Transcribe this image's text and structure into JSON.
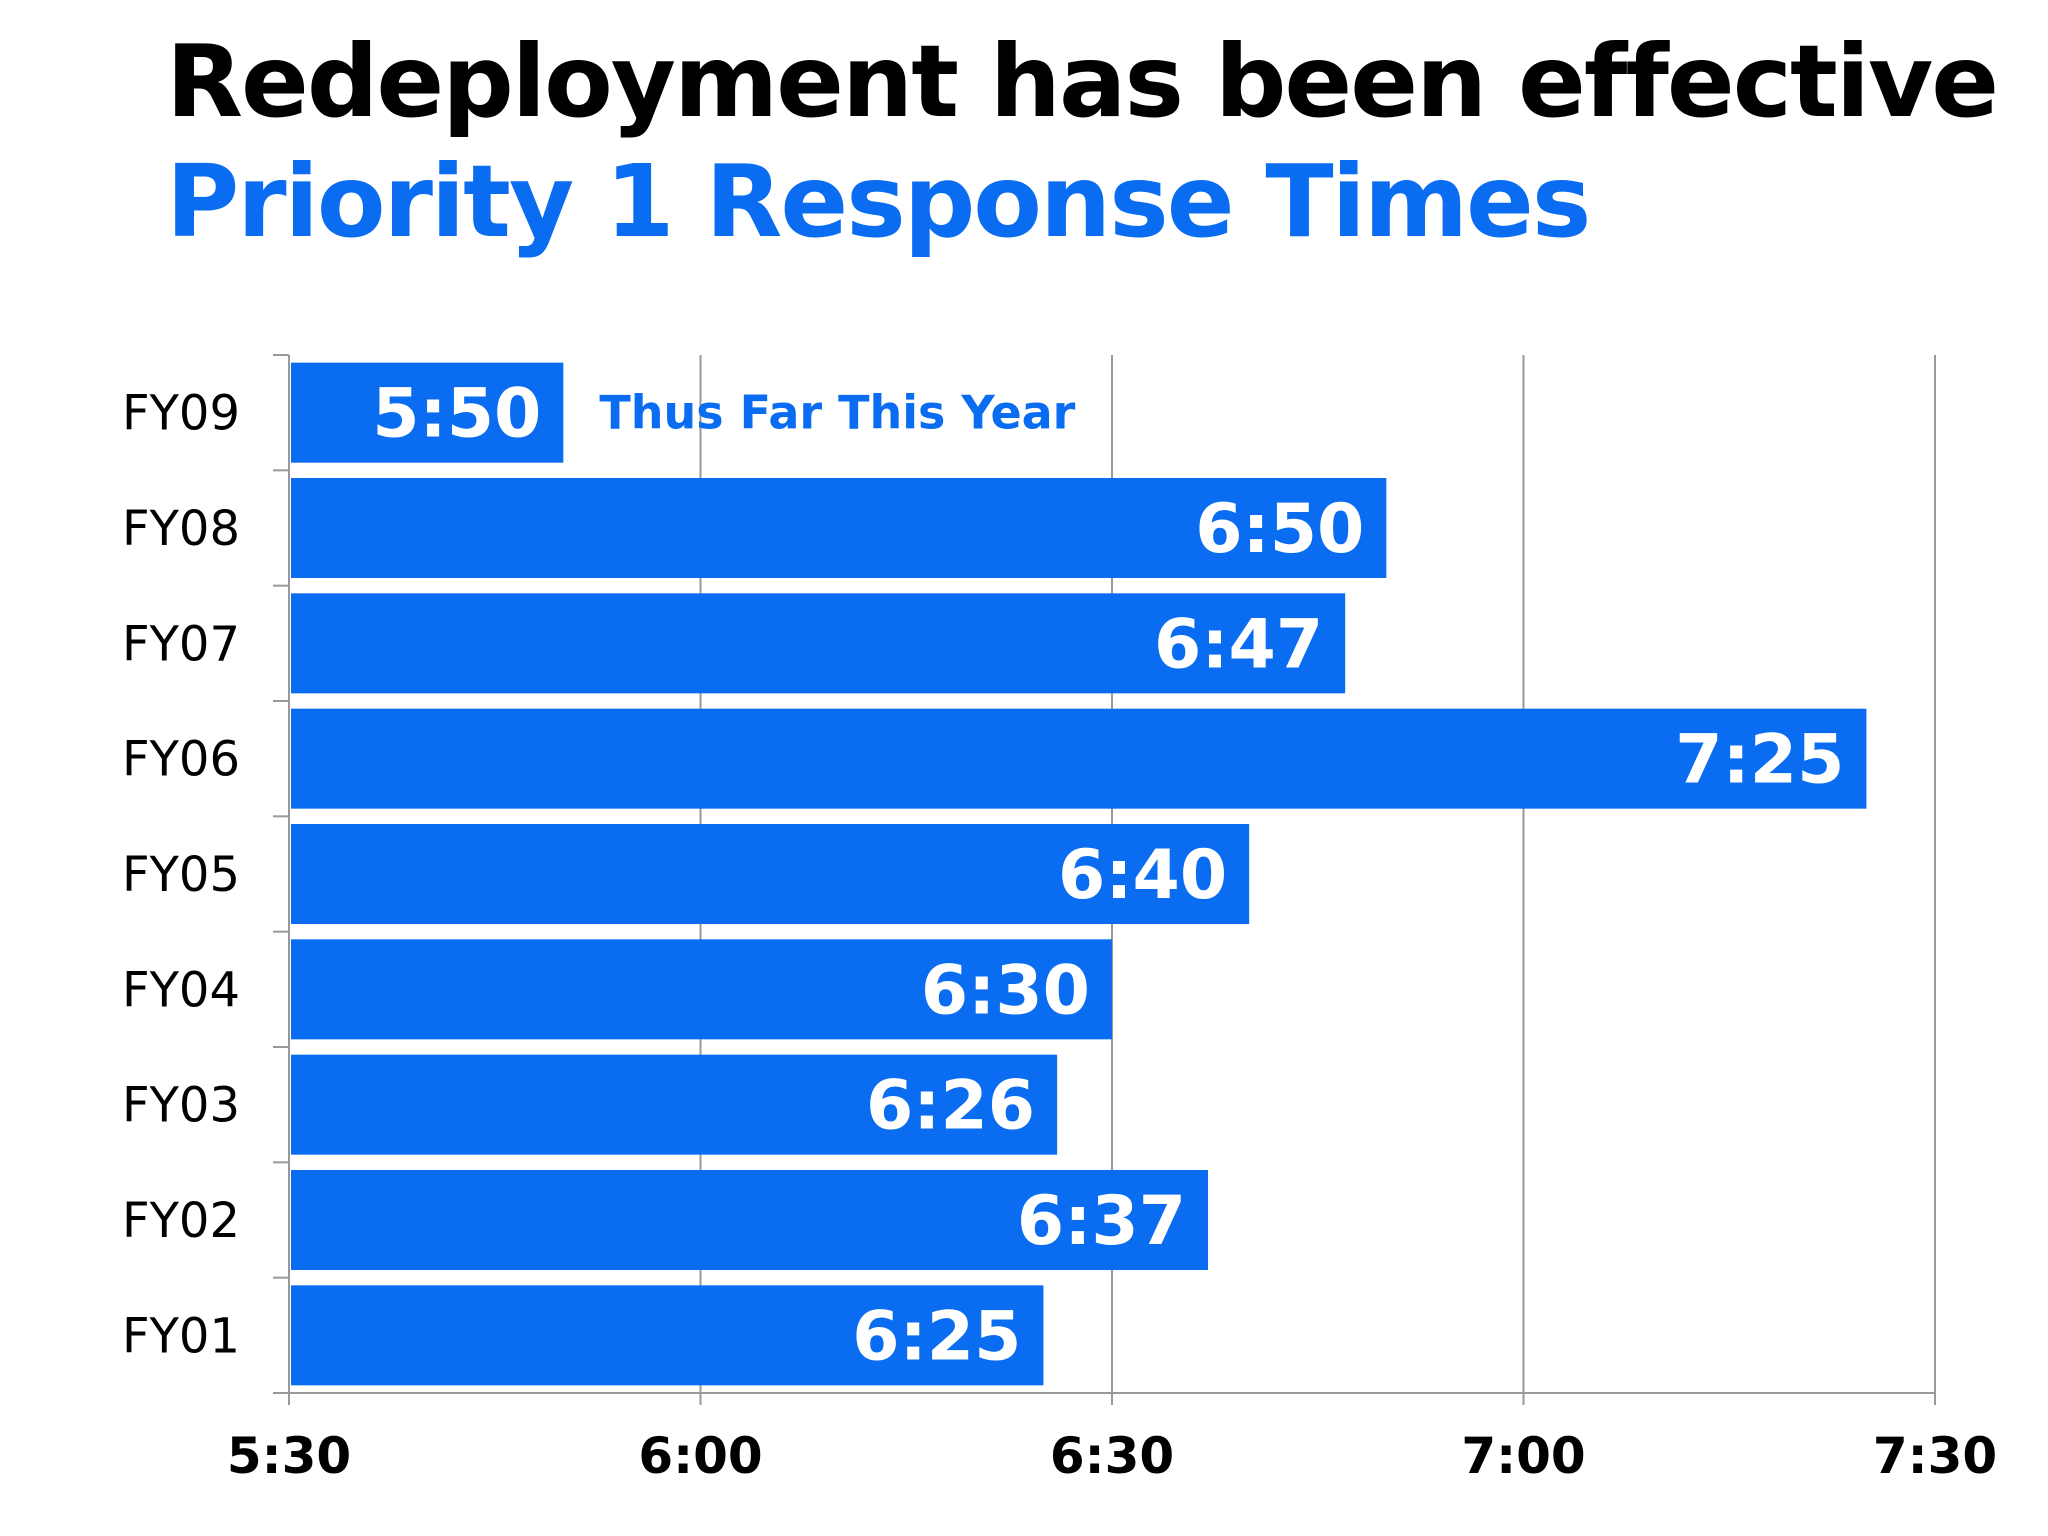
{
  "chart_data": {
    "type": "bar",
    "orientation": "horizontal",
    "title": "Redeployment has been effective",
    "subtitle": "Priority 1 Response Times",
    "categories": [
      "FY09",
      "FY08",
      "FY07",
      "FY06",
      "FY05",
      "FY04",
      "FY03",
      "FY02",
      "FY01"
    ],
    "values": [
      "5:50",
      "6:50",
      "6:47",
      "7:25",
      "6:40",
      "6:30",
      "6:26",
      "6:37",
      "6:25"
    ],
    "value_seconds": [
      350,
      410,
      407,
      445,
      400,
      390,
      386,
      397,
      385
    ],
    "data_labels": [
      "5:50",
      "6:50",
      "6:47",
      "7:25",
      "6:40",
      "6:30",
      "6:26",
      "6:37",
      "6:25"
    ],
    "xlim": [
      "5:30",
      "7:30"
    ],
    "xlim_seconds": [
      330,
      450
    ],
    "x_ticks": [
      "5:30",
      "6:00",
      "6:30",
      "7:00",
      "7:30"
    ],
    "x_ticks_seconds": [
      330,
      360,
      390,
      420,
      450
    ],
    "xlabel": "",
    "ylabel": "",
    "grid": "vertical",
    "legend": "none",
    "annotations": [
      {
        "category": "FY09",
        "text": "Thus Far This Year"
      }
    ],
    "colors": {
      "bar": "#0a6cf0",
      "subtitle": "#0a6cf0",
      "grid": "#999999",
      "bar_label": "#ffffff"
    }
  }
}
